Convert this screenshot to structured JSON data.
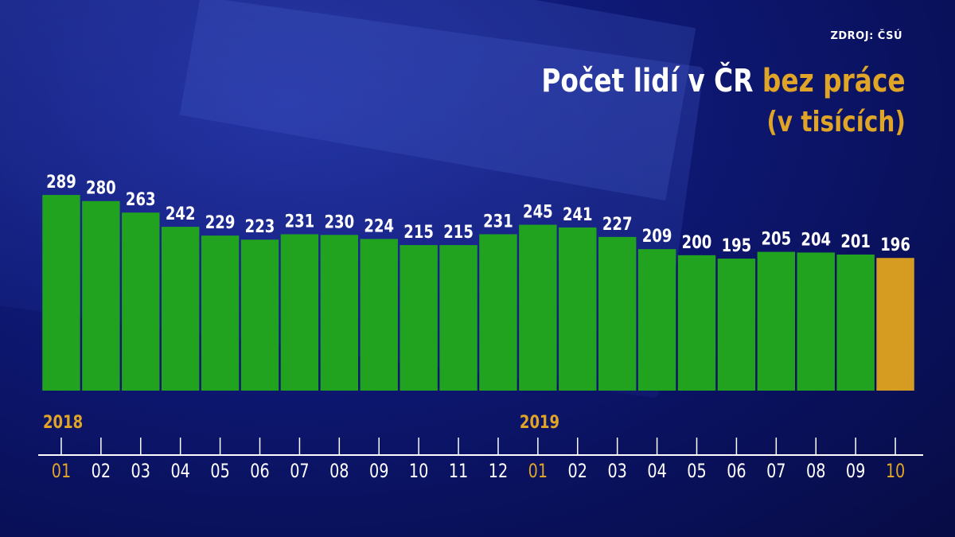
{
  "source": "ZDROJ: ČSÚ",
  "title_part1": "Počet lidí v ČR ",
  "title_part2": "bez práce",
  "subtitle": "(v tisících)",
  "colors": {
    "bar": "#22a31f",
    "bar_highlight": "#d69c21",
    "accent": "#e0a526",
    "text": "#ffffff"
  },
  "chart_data": {
    "type": "bar",
    "title": "Počet lidí v ČR bez práce",
    "subtitle": "(v tisících)",
    "unit": "thousands",
    "year_labels": [
      {
        "label": "2018",
        "start_index": 0
      },
      {
        "label": "2019",
        "start_index": 12
      }
    ],
    "categories": [
      "01",
      "02",
      "03",
      "04",
      "05",
      "06",
      "07",
      "08",
      "09",
      "10",
      "11",
      "12",
      "01",
      "02",
      "03",
      "04",
      "05",
      "06",
      "07",
      "08",
      "09",
      "10"
    ],
    "values": [
      289,
      280,
      263,
      242,
      229,
      223,
      231,
      230,
      224,
      215,
      215,
      231,
      245,
      241,
      227,
      209,
      200,
      195,
      205,
      204,
      201,
      196
    ],
    "highlight_indices": [
      21
    ],
    "gold_tick_indices": [
      0,
      12,
      21
    ],
    "ylim": [
      0,
      320
    ],
    "grid": false,
    "legend": "none"
  }
}
